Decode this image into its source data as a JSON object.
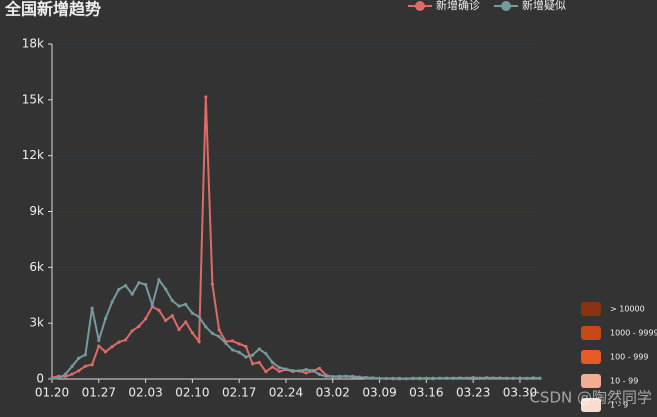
{
  "chart_data": {
    "type": "line",
    "title": "全国新增趋势",
    "categories": [
      "01.20",
      null,
      null,
      null,
      null,
      null,
      null,
      "01.27",
      null,
      null,
      null,
      null,
      null,
      null,
      "02.03",
      null,
      null,
      null,
      null,
      null,
      null,
      "02.10",
      null,
      null,
      null,
      null,
      null,
      null,
      "02.17",
      null,
      null,
      null,
      null,
      null,
      null,
      "02.24",
      null,
      null,
      null,
      null,
      null,
      null,
      "03.02",
      null,
      null,
      null,
      null,
      null,
      null,
      "03.09",
      null,
      null,
      null,
      null,
      null,
      null,
      "03.16",
      null,
      null,
      null,
      null,
      null,
      null,
      "03.23",
      null,
      null,
      null,
      null,
      null,
      null,
      "03.30",
      null,
      null,
      null
    ],
    "series": [
      {
        "name": "新增确诊",
        "color": "#dd6b66",
        "values": [
          77,
          149,
          131,
          259,
          444,
          688,
          769,
          1771,
          1459,
          1737,
          1982,
          2102,
          2590,
          2829,
          3235,
          3887,
          3694,
          3143,
          3399,
          2656,
          3062,
          2478,
          2015,
          15152,
          5090,
          2641,
          2009,
          2048,
          1886,
          1749,
          820,
          889,
          397,
          648,
          409,
          508,
          406,
          433,
          327,
          427,
          573,
          202,
          125,
          119,
          139,
          143,
          99,
          44,
          40,
          19,
          24,
          15,
          8,
          11,
          20,
          16,
          21,
          13,
          34,
          39,
          41,
          46,
          39,
          78,
          47,
          67,
          55,
          54,
          45,
          31,
          48,
          36,
          35,
          31
        ]
      },
      {
        "name": "新增疑似",
        "color": "#759aa0",
        "values": [
          27,
          26,
          257,
          680,
          1118,
          1309,
          3806,
          2077,
          3248,
          4148,
          4812,
          5019,
          4562,
          5173,
          5072,
          3971,
          5328,
          4833,
          4214,
          3916,
          4008,
          3536,
          3342,
          2807,
          2450,
          2277,
          1918,
          1563,
          1432,
          1185,
          1277,
          1614,
          1361,
          882,
          620,
          530,
          452,
          439,
          508,
          452,
          248,
          141,
          129,
          143,
          143,
          102,
          99,
          83,
          60,
          36,
          31,
          33,
          33,
          17,
          39,
          41,
          45,
          45,
          45,
          42,
          39,
          57,
          45,
          65,
          32,
          54,
          47,
          38,
          30,
          41,
          17,
          31,
          62,
          41
        ]
      }
    ],
    "ylim": [
      0,
      18000
    ],
    "yticks": [
      0,
      {
        "value": 3000,
        "label": "3k"
      },
      {
        "value": 6000,
        "label": "6k"
      },
      {
        "value": 9000,
        "label": "9k"
      },
      {
        "value": 12000,
        "label": "12k"
      },
      {
        "value": 15000,
        "label": "15k"
      },
      {
        "value": 18000,
        "label": "18k"
      }
    ],
    "grid": true,
    "legend": "top-right"
  },
  "visual_map": {
    "pieces": [
      {
        "label": "> 10000",
        "color": "#8a3310"
      },
      {
        "label": "1000 - 9999",
        "color": "#c64918"
      },
      {
        "label": "100 - 999",
        "color": "#e55b25"
      },
      {
        "label": "10 - 99",
        "color": "#f2ad92"
      },
      {
        "label": "1 - 9",
        "color": "#f9dcd1"
      }
    ]
  },
  "watermark": "CSDN @陶然同学"
}
